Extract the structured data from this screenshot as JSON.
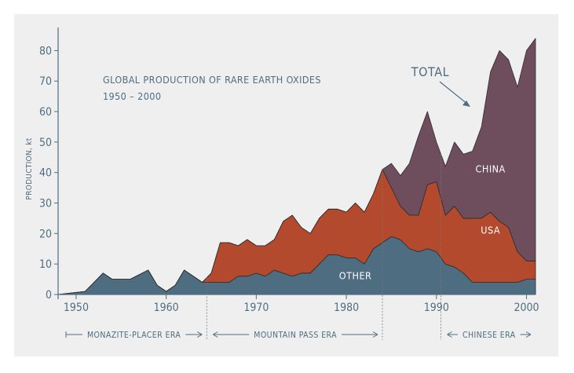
{
  "chart_data": {
    "type": "area",
    "title": [
      "GLOBAL PRODUCTION OF RARE EARTH OXIDES",
      "1950 – 2000"
    ],
    "ylabel": "PRODUCTION, kt",
    "xlim": [
      1948,
      2001
    ],
    "ylim": [
      0,
      85
    ],
    "x_ticks": [
      1950,
      1960,
      1970,
      1980,
      1990,
      2000
    ],
    "y_ticks": [
      0,
      10,
      20,
      30,
      40,
      50,
      60,
      70,
      80
    ],
    "stacked": true,
    "x": [
      1948,
      1951,
      1953,
      1954,
      1955,
      1956,
      1958,
      1959,
      1960,
      1961,
      1962,
      1964,
      1965,
      1966,
      1967,
      1968,
      1969,
      1970,
      1971,
      1972,
      1973,
      1974,
      1975,
      1976,
      1977,
      1978,
      1979,
      1980,
      1981,
      1982,
      1983,
      1984,
      1985,
      1986,
      1987,
      1988,
      1989,
      1990,
      1991,
      1992,
      1993,
      1994,
      1995,
      1996,
      1997,
      1998,
      1999,
      2000,
      2001
    ],
    "series": [
      {
        "name": "OTHER",
        "color": "#4f6d80",
        "values": [
          0,
          1,
          7,
          5,
          5,
          5,
          8,
          3,
          1,
          3,
          8,
          4,
          4,
          4,
          4,
          6,
          6,
          7,
          6,
          8,
          7,
          6,
          7,
          7,
          10,
          13,
          13,
          12,
          12,
          10,
          15,
          17,
          19,
          18,
          15,
          14,
          15,
          14,
          10,
          9,
          7,
          4,
          4,
          4,
          4,
          4,
          4,
          5,
          5
        ]
      },
      {
        "name": "USA",
        "color": "#b34a2e",
        "values": [
          0,
          0,
          0,
          0,
          0,
          0,
          0,
          0,
          0,
          0,
          0,
          0,
          3,
          13,
          13,
          10,
          12,
          9,
          10,
          10,
          17,
          20,
          15,
          13,
          15,
          15,
          15,
          15,
          18,
          17,
          18,
          24,
          16,
          11,
          11,
          12,
          21,
          23,
          16,
          20,
          18,
          21,
          21,
          23,
          20,
          18,
          10,
          6,
          6
        ]
      },
      {
        "name": "CHINA",
        "color": "#6e4d5c",
        "values": [
          0,
          0,
          0,
          0,
          0,
          0,
          0,
          0,
          0,
          0,
          0,
          0,
          0,
          0,
          0,
          0,
          0,
          0,
          0,
          0,
          0,
          0,
          0,
          0,
          0,
          0,
          0,
          0,
          0,
          0,
          0,
          0,
          8,
          10,
          17,
          26,
          24,
          13,
          16,
          21,
          21,
          22,
          30,
          46,
          56,
          55,
          54,
          69,
          73
        ]
      }
    ],
    "annotations": [
      "TOTAL"
    ],
    "eras": [
      {
        "label": "MONAZITE-PLACER ERA",
        "from": 1948,
        "to": 1964.5
      },
      {
        "label": "MOUNTAIN PASS ERA",
        "from": 1964.5,
        "to": 1984
      },
      {
        "label": "CHINESE ERA",
        "from": 1990.5,
        "to": 2001
      }
    ]
  }
}
